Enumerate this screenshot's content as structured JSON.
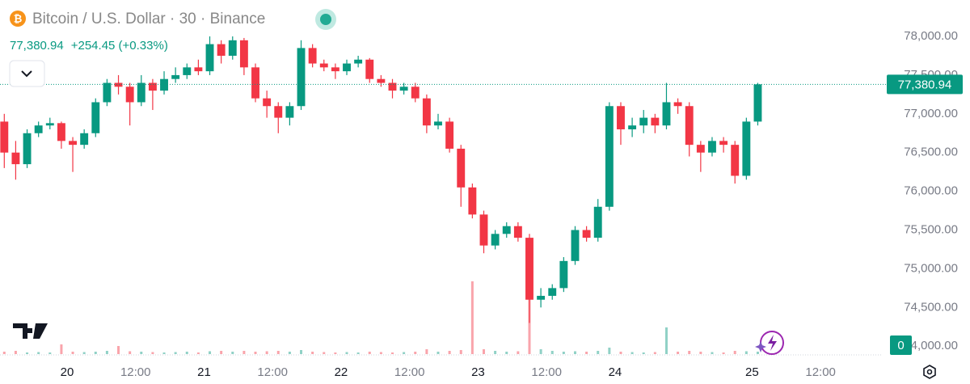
{
  "chart_data": {
    "type": "candlestick",
    "title": "Bitcoin / U.S. Dollar · 30 · Binance",
    "last_price": {
      "value": 77380.94,
      "label": "77,380.94"
    },
    "change_label": "+254.45 (+0.33%)",
    "volume_badge": "0",
    "up_color": "#089981",
    "down_color": "#f23645",
    "x": [
      -11,
      -9,
      -7,
      -5,
      -3,
      -1,
      1,
      3,
      5,
      7,
      9,
      11,
      13,
      15,
      17,
      19,
      21,
      23,
      25,
      27,
      29,
      31,
      33,
      35,
      37,
      39,
      41,
      43,
      45,
      47,
      49,
      51,
      53,
      55,
      57,
      59,
      61,
      63,
      65,
      67,
      69,
      71,
      73,
      75,
      77,
      79,
      81,
      83,
      85,
      87,
      89,
      91,
      93,
      95,
      97,
      99,
      101,
      103,
      105,
      107,
      109,
      111,
      113,
      115,
      117,
      119,
      121
    ],
    "open": [
      76900,
      76500,
      76350,
      76750,
      76850,
      76880,
      76650,
      76600,
      76750,
      77150,
      77400,
      77350,
      77150,
      77400,
      77300,
      77450,
      77500,
      77600,
      77550,
      77900,
      77750,
      77950,
      77600,
      77200,
      77100,
      76950,
      77100,
      77850,
      77650,
      77600,
      77550,
      77650,
      77700,
      77450,
      77400,
      77300,
      77350,
      77200,
      76850,
      76900,
      76550,
      76050,
      75700,
      75300,
      75450,
      75550,
      75400,
      74600,
      74650,
      74750,
      75100,
      75500,
      75400,
      75800,
      77100,
      76800,
      76850,
      76950,
      76850,
      77150,
      77100,
      76600,
      76500,
      76650,
      76600,
      76200,
      76900
    ],
    "high": [
      77000,
      76650,
      76800,
      76900,
      76950,
      76900,
      76700,
      76800,
      77200,
      77450,
      77500,
      77400,
      77500,
      77450,
      77550,
      77600,
      77650,
      77700,
      78000,
      77950,
      78000,
      77980,
      77650,
      77300,
      77150,
      77150,
      77950,
      77900,
      77700,
      77650,
      77700,
      77750,
      77720,
      77500,
      77450,
      77400,
      77400,
      77250,
      77000,
      76950,
      76600,
      76100,
      75750,
      75500,
      75600,
      75600,
      75450,
      74750,
      74800,
      75150,
      75550,
      75550,
      75900,
      77150,
      77150,
      76950,
      77050,
      77000,
      77400,
      77200,
      77150,
      76650,
      76700,
      76700,
      76650,
      76950,
      77400
    ],
    "low": [
      76300,
      76150,
      76300,
      76700,
      76800,
      76550,
      76250,
      76550,
      76700,
      77100,
      77250,
      76850,
      77100,
      77050,
      77250,
      77400,
      77450,
      77500,
      77500,
      77650,
      77700,
      77500,
      77150,
      76950,
      76750,
      76850,
      77050,
      77600,
      77550,
      77450,
      77500,
      77600,
      77400,
      77350,
      77200,
      77250,
      77150,
      76750,
      76800,
      76500,
      75800,
      75650,
      75200,
      75250,
      75400,
      75350,
      74300,
      74500,
      74600,
      74700,
      75050,
      75350,
      75350,
      75750,
      76600,
      76700,
      76750,
      76750,
      76800,
      77000,
      76450,
      76250,
      76450,
      76500,
      76100,
      76150,
      76850
    ],
    "close": [
      76500,
      76350,
      76750,
      76850,
      76880,
      76650,
      76600,
      76750,
      77150,
      77400,
      77350,
      77150,
      77400,
      77300,
      77450,
      77500,
      77600,
      77550,
      77900,
      77750,
      77950,
      77600,
      77200,
      77100,
      76950,
      77100,
      77850,
      77650,
      77600,
      77550,
      77650,
      77700,
      77450,
      77400,
      77300,
      77350,
      77200,
      76850,
      76900,
      76550,
      76050,
      75700,
      75300,
      75450,
      75550,
      75400,
      74600,
      74650,
      74750,
      75100,
      75500,
      75400,
      75800,
      77100,
      76800,
      76850,
      76950,
      76850,
      77150,
      77100,
      76600,
      76500,
      76650,
      76600,
      76200,
      76900,
      77380.94
    ],
    "volume": [
      30,
      40,
      20,
      25,
      20,
      120,
      30,
      25,
      30,
      40,
      100,
      35,
      30,
      25,
      20,
      25,
      30,
      20,
      35,
      40,
      30,
      40,
      30,
      35,
      40,
      30,
      50,
      30,
      25,
      20,
      25,
      20,
      30,
      25,
      20,
      25,
      30,
      60,
      30,
      40,
      50,
      900,
      60,
      40,
      30,
      35,
      1280,
      60,
      40,
      30,
      35,
      30,
      40,
      80,
      30,
      25,
      20,
      25,
      330,
      30,
      40,
      30,
      25,
      20,
      40,
      35,
      30
    ],
    "vlim": [
      0,
      1500
    ],
    "xlim": [
      -11.75,
      142.6
    ],
    "xticks": [
      {
        "value": 0,
        "label": "20"
      },
      {
        "value": 12,
        "label": "12:00"
      },
      {
        "value": 24,
        "label": "21"
      },
      {
        "value": 36,
        "label": "12:00"
      },
      {
        "value": 48,
        "label": "22"
      },
      {
        "value": 60,
        "label": "12:00"
      },
      {
        "value": 72,
        "label": "23"
      },
      {
        "value": 84,
        "label": "12:00"
      },
      {
        "value": 96,
        "label": "24"
      },
      {
        "value": 120,
        "label": "25"
      },
      {
        "value": 132,
        "label": "12:00"
      }
    ],
    "ylim": [
      73877,
      78470
    ],
    "yticks": [
      {
        "value": 74000,
        "label": "74,000.00"
      },
      {
        "value": 74500,
        "label": "74,500.00"
      },
      {
        "value": 75000,
        "label": "75,000.00"
      },
      {
        "value": 75500,
        "label": "75,500.00"
      },
      {
        "value": 76000,
        "label": "76,000.00"
      },
      {
        "value": 76500,
        "label": "76,500.00"
      },
      {
        "value": 77000,
        "label": "77,000.00"
      },
      {
        "value": 77500,
        "label": "77,500.00"
      },
      {
        "value": 78000,
        "label": "78,000.00"
      }
    ]
  }
}
